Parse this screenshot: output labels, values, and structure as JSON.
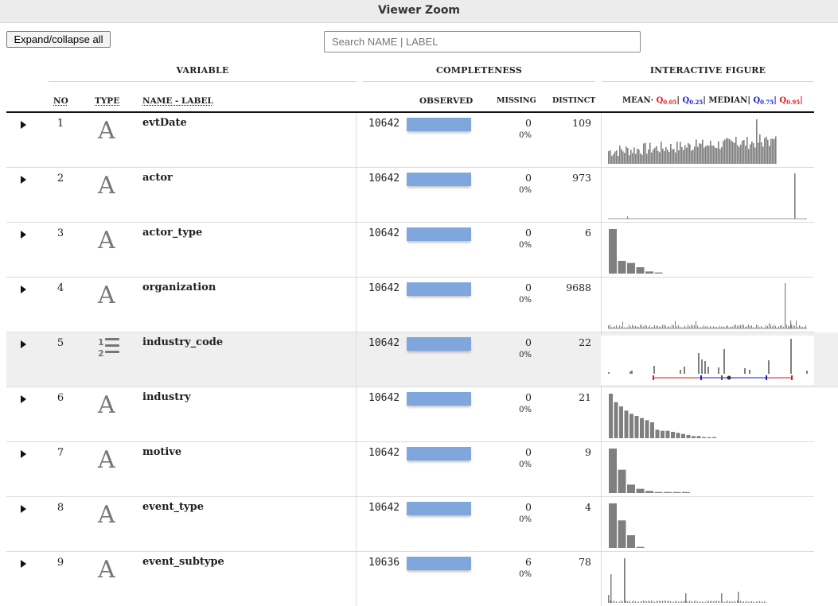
{
  "window": {
    "title": "Viewer Zoom"
  },
  "toolbar": {
    "expand_label": "Expand/collapse all",
    "search_placeholder": "Search NAME | LABEL",
    "search_value": ""
  },
  "groups": {
    "variable": "VARIABLE",
    "completeness": "COMPLETENESS",
    "figure": "INTERACTIVE FIGURE"
  },
  "columns": {
    "no": "NO",
    "type": "TYPE",
    "name": "NAME - LABEL",
    "observed": "OBSERVED",
    "missing": "MISSING",
    "distinct": "DISTINCT"
  },
  "legend": {
    "mean": "MEAN",
    "mean_dot": "·",
    "sep": "|",
    "median": "MEDIAN",
    "q": "Q",
    "q05": "0.05",
    "q25": "0.25",
    "q75": "0.75",
    "q95": "0.95",
    "colors": {
      "black": "#222222",
      "red": "#e8131a",
      "blue": "#1a1ae0"
    }
  },
  "colors": {
    "completeness_bar": "#7fa6dd",
    "histogram_bar": "#7f7f7f",
    "quantile_low": "#e8131a",
    "quantile_mid": "#1a1ae0"
  },
  "rows": [
    {
      "no": "1",
      "type": "text-icon",
      "name": "evtDate",
      "observed": "10642",
      "missing": "0",
      "missing_pct": "0%",
      "distinct": "109",
      "completeness": 1.0,
      "chart": "dense"
    },
    {
      "no": "2",
      "type": "text-icon",
      "name": "actor",
      "observed": "10642",
      "missing": "0",
      "missing_pct": "0%",
      "distinct": "973",
      "completeness": 1.0,
      "chart": "spike"
    },
    {
      "no": "3",
      "type": "text-icon",
      "name": "actor_type",
      "observed": "10642",
      "missing": "0",
      "missing_pct": "0%",
      "distinct": "6",
      "completeness": 1.0,
      "chart": "bars",
      "bars": [
        42,
        12,
        10,
        6,
        2,
        1
      ]
    },
    {
      "no": "4",
      "type": "text-icon",
      "name": "organization",
      "observed": "10642",
      "missing": "0",
      "missing_pct": "0%",
      "distinct": "9688",
      "completeness": 1.0,
      "chart": "spike-noise"
    },
    {
      "no": "5",
      "type": "list-icon",
      "name": "industry_code",
      "observed": "10642",
      "missing": "0",
      "missing_pct": "0%",
      "distinct": "22",
      "completeness": 1.0,
      "chart": "quantile"
    },
    {
      "no": "6",
      "type": "text-icon",
      "name": "industry",
      "observed": "10642",
      "missing": "0",
      "missing_pct": "0%",
      "distinct": "21",
      "completeness": 1.0,
      "chart": "bars",
      "bars": [
        42,
        34,
        30,
        26,
        23,
        21,
        19,
        17,
        15,
        8,
        7,
        7,
        6,
        5,
        4,
        3,
        2,
        2,
        1,
        1,
        1
      ]
    },
    {
      "no": "7",
      "type": "text-icon",
      "name": "motive",
      "observed": "10642",
      "missing": "0",
      "missing_pct": "0%",
      "distinct": "9",
      "completeness": 1.0,
      "chart": "bars",
      "bars": [
        42,
        22,
        8,
        4,
        2,
        1,
        1,
        1,
        1
      ]
    },
    {
      "no": "8",
      "type": "text-icon",
      "name": "event_type",
      "observed": "10642",
      "missing": "0",
      "missing_pct": "0%",
      "distinct": "4",
      "completeness": 1.0,
      "chart": "bars",
      "bars": [
        42,
        26,
        12,
        1
      ]
    },
    {
      "no": "9",
      "type": "text-icon",
      "name": "event_subtype",
      "observed": "10636",
      "missing": "6",
      "missing_pct": "0%",
      "distinct": "78",
      "completeness": 0.999,
      "chart": "sparse"
    }
  ]
}
